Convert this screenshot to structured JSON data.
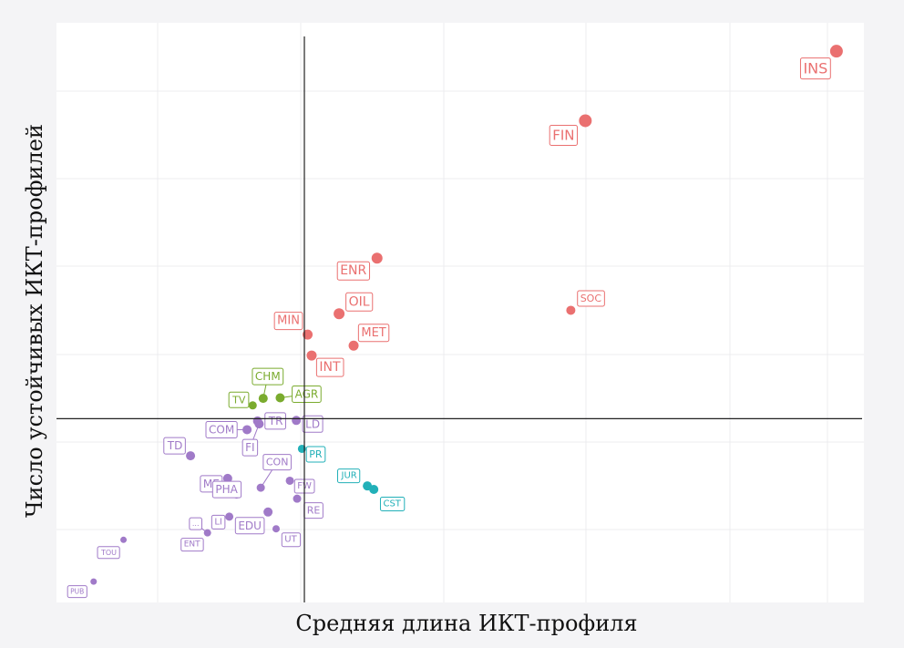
{
  "chart_data": {
    "type": "scatter",
    "title": "",
    "xlabel": "Средняя длина ИКТ-профиля",
    "ylabel": "Число устойчивых ИКТ-профилей",
    "xlim": [
      0,
      1
    ],
    "ylim": [
      0,
      1
    ],
    "reference_lines": {
      "x": 0.307,
      "y": 0.317
    },
    "grid": true,
    "legend": "none",
    "colors": {
      "red": "#ea7070",
      "green": "#7aab2e",
      "teal": "#22b0b8",
      "purple": "#a07ac8"
    },
    "groups": [
      {
        "name": "red",
        "color": "#ea7070"
      },
      {
        "name": "green",
        "color": "#7aab2e"
      },
      {
        "name": "teal",
        "color": "#22b0b8"
      },
      {
        "name": "purple",
        "color": "#a07ac8"
      }
    ],
    "points": [
      {
        "label": "INS",
        "x": 0.966,
        "y": 0.951,
        "group": "red",
        "size": 7
      },
      {
        "label": "FIN",
        "x": 0.655,
        "y": 0.831,
        "group": "red",
        "size": 7
      },
      {
        "label": "ENR",
        "x": 0.397,
        "y": 0.594,
        "group": "red",
        "size": 6
      },
      {
        "label": "SOC",
        "x": 0.637,
        "y": 0.504,
        "group": "red",
        "size": 5
      },
      {
        "label": "OIL",
        "x": 0.35,
        "y": 0.498,
        "group": "red",
        "size": 6
      },
      {
        "label": "MIN",
        "x": 0.311,
        "y": 0.462,
        "group": "red",
        "size": 5.5
      },
      {
        "label": "MET",
        "x": 0.368,
        "y": 0.443,
        "group": "red",
        "size": 5.5
      },
      {
        "label": "INT",
        "x": 0.316,
        "y": 0.426,
        "group": "red",
        "size": 5.5
      },
      {
        "label": "CHM",
        "x": 0.256,
        "y": 0.352,
        "group": "green",
        "size": 5
      },
      {
        "label": "AGR",
        "x": 0.277,
        "y": 0.353,
        "group": "green",
        "size": 5
      },
      {
        "label": "TV",
        "x": 0.243,
        "y": 0.34,
        "group": "green",
        "size": 4.5
      },
      {
        "label": "TR",
        "x": 0.249,
        "y": 0.313,
        "group": "purple",
        "size": 5
      },
      {
        "label": "LD",
        "x": 0.297,
        "y": 0.314,
        "group": "purple",
        "size": 5
      },
      {
        "label": "COM",
        "x": 0.236,
        "y": 0.298,
        "group": "purple",
        "size": 5
      },
      {
        "label": "FI",
        "x": 0.251,
        "y": 0.308,
        "group": "purple",
        "size": 5
      },
      {
        "label": "PR",
        "x": 0.304,
        "y": 0.265,
        "group": "teal",
        "size": 4.5
      },
      {
        "label": "TD",
        "x": 0.166,
        "y": 0.253,
        "group": "purple",
        "size": 5
      },
      {
        "label": "CON",
        "x": 0.253,
        "y": 0.198,
        "group": "purple",
        "size": 4.5
      },
      {
        "label": "ME",
        "x": 0.212,
        "y": 0.214,
        "group": "purple",
        "size": 5
      },
      {
        "label": "PHA",
        "x": 0.223,
        "y": 0.187,
        "group": "purple",
        "size": 5
      },
      {
        "label": "FW",
        "x": 0.289,
        "y": 0.21,
        "group": "purple",
        "size": 4.5
      },
      {
        "label": "JUR",
        "x": 0.385,
        "y": 0.201,
        "group": "teal",
        "size": 5
      },
      {
        "label": "CST",
        "x": 0.393,
        "y": 0.195,
        "group": "teal",
        "size": 5
      },
      {
        "label": "RE",
        "x": 0.298,
        "y": 0.179,
        "group": "purple",
        "size": 4.5
      },
      {
        "label": "LI",
        "x": 0.214,
        "y": 0.148,
        "group": "purple",
        "size": 4.5
      },
      {
        "label": "EDU",
        "x": 0.262,
        "y": 0.156,
        "group": "purple",
        "size": 5
      },
      {
        "label": "UT",
        "x": 0.272,
        "y": 0.127,
        "group": "purple",
        "size": 4
      },
      {
        "label": "...",
        "x": 0.187,
        "y": 0.12,
        "group": "purple",
        "size": 4
      },
      {
        "label": "ENT",
        "x": 0.187,
        "y": 0.12,
        "group": "purple",
        "size": 0
      },
      {
        "label": "TOU",
        "x": 0.083,
        "y": 0.108,
        "group": "purple",
        "size": 3.5
      },
      {
        "label": "PUB",
        "x": 0.046,
        "y": 0.036,
        "group": "purple",
        "size": 3.5
      }
    ]
  }
}
